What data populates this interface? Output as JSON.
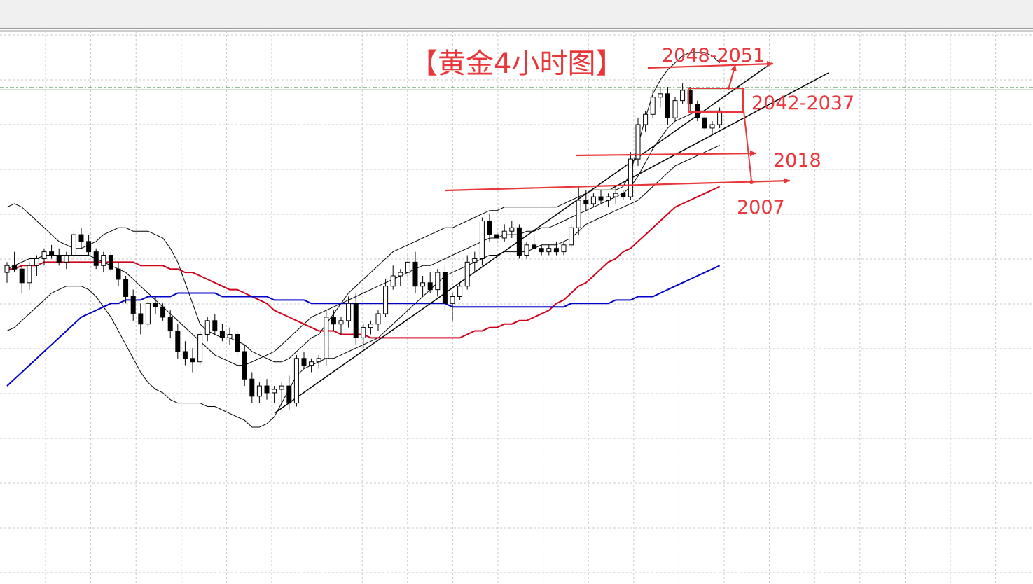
{
  "chart_data": {
    "type": "candlestick",
    "title": "【黄金4小时图】",
    "xlabel": "",
    "ylabel": "",
    "grid": true,
    "ylim": [
      1950,
      2060
    ],
    "annotations": {
      "resistance": "2048-2051",
      "support_zone": "2042-2037",
      "support_1": "2018",
      "support_2": "2007"
    },
    "levels": [
      2049,
      2018,
      2007
    ],
    "candles": [
      [
        1995,
        1998,
        1992,
        1997
      ],
      [
        1997,
        2001,
        1995,
        1996
      ],
      [
        1996,
        1997,
        1989,
        1992
      ],
      [
        1992,
        1998,
        1990,
        1997
      ],
      [
        1997,
        2000,
        1994,
        1999
      ],
      [
        1999,
        2002,
        1997,
        2001
      ],
      [
        2001,
        2003,
        1999,
        2000
      ],
      [
        2000,
        2002,
        1997,
        1998
      ],
      [
        1998,
        2001,
        1996,
        2000
      ],
      [
        2000,
        2007,
        1999,
        2006
      ],
      [
        2006,
        2008,
        2002,
        2004
      ],
      [
        2004,
        2006,
        2000,
        2001
      ],
      [
        2001,
        2002,
        1996,
        1997
      ],
      [
        1997,
        2001,
        1995,
        2000
      ],
      [
        2000,
        2001,
        1995,
        1996
      ],
      [
        1996,
        1998,
        1991,
        1993
      ],
      [
        1993,
        1994,
        1986,
        1988
      ],
      [
        1988,
        1990,
        1981,
        1983
      ],
      [
        1983,
        1986,
        1977,
        1980
      ],
      [
        1980,
        1987,
        1979,
        1986
      ],
      [
        1986,
        1988,
        1983,
        1985
      ],
      [
        1985,
        1986,
        1981,
        1982
      ],
      [
        1982,
        1984,
        1976,
        1978
      ],
      [
        1978,
        1980,
        1970,
        1972
      ],
      [
        1972,
        1975,
        1968,
        1970
      ],
      [
        1970,
        1973,
        1966,
        1969
      ],
      [
        1969,
        1978,
        1968,
        1977
      ],
      [
        1977,
        1982,
        1975,
        1981
      ],
      [
        1981,
        1983,
        1977,
        1978
      ],
      [
        1978,
        1980,
        1975,
        1976
      ],
      [
        1976,
        1979,
        1974,
        1977
      ],
      [
        1977,
        1978,
        1971,
        1972
      ],
      [
        1972,
        1974,
        1962,
        1964
      ],
      [
        1964,
        1966,
        1957,
        1959
      ],
      [
        1959,
        1963,
        1957,
        1962
      ],
      [
        1962,
        1964,
        1958,
        1960
      ],
      [
        1960,
        1962,
        1957,
        1961
      ],
      [
        1961,
        1963,
        1956,
        1962
      ],
      [
        1962,
        1965,
        1955,
        1957
      ],
      [
        1957,
        1971,
        1956,
        1970
      ],
      [
        1970,
        1972,
        1967,
        1968
      ],
      [
        1968,
        1970,
        1966,
        1969
      ],
      [
        1969,
        1971,
        1967,
        1970
      ],
      [
        1970,
        1984,
        1968,
        1982
      ],
      [
        1982,
        1984,
        1978,
        1980
      ],
      [
        1980,
        1982,
        1977,
        1981
      ],
      [
        1981,
        1988,
        1979,
        1986
      ],
      [
        1986,
        1989,
        1974,
        1976
      ],
      [
        1976,
        1980,
        1973,
        1979
      ],
      [
        1979,
        1981,
        1977,
        1980
      ],
      [
        1980,
        1984,
        1978,
        1983
      ],
      [
        1983,
        1993,
        1982,
        1991
      ],
      [
        1991,
        1997,
        1990,
        1994
      ],
      [
        1994,
        1996,
        1991,
        1995
      ],
      [
        1995,
        2000,
        1993,
        1998
      ],
      [
        1998,
        2001,
        1989,
        1991
      ],
      [
        1991,
        1994,
        1988,
        1992
      ],
      [
        1992,
        1995,
        1989,
        1990
      ],
      [
        1990,
        1996,
        1988,
        1995
      ],
      [
        1995,
        1997,
        1984,
        1986
      ],
      [
        1986,
        1989,
        1981,
        1988
      ],
      [
        1988,
        1992,
        1987,
        1991
      ],
      [
        1991,
        2000,
        1990,
        1998
      ],
      [
        1998,
        2001,
        1995,
        1999
      ],
      [
        1999,
        2011,
        1997,
        2010
      ],
      [
        2010,
        2012,
        2004,
        2006
      ],
      [
        2006,
        2008,
        2003,
        2005
      ],
      [
        2005,
        2009,
        2004,
        2007
      ],
      [
        2007,
        2010,
        2005,
        2008
      ],
      [
        2008,
        2009,
        1999,
        2000
      ],
      [
        2000,
        2004,
        1999,
        2003
      ],
      [
        2003,
        2006,
        2001,
        2002
      ],
      [
        2002,
        2003,
        2000,
        2001
      ],
      [
        2001,
        2003,
        2000,
        2002
      ],
      [
        2002,
        2004,
        2000,
        2001
      ],
      [
        2001,
        2004,
        2000,
        2003
      ],
      [
        2003,
        2009,
        2002,
        2008
      ],
      [
        2008,
        2020,
        2006,
        2016
      ],
      [
        2016,
        2019,
        2013,
        2015
      ],
      [
        2015,
        2018,
        2014,
        2017
      ],
      [
        2017,
        2019,
        2015,
        2016
      ],
      [
        2016,
        2018,
        2014,
        2017
      ],
      [
        2017,
        2020,
        2015,
        2018
      ],
      [
        2018,
        2019,
        2016,
        2017
      ],
      [
        2017,
        2030,
        2016,
        2028
      ],
      [
        2028,
        2040,
        2026,
        2038
      ],
      [
        2038,
        2042,
        2036,
        2041
      ],
      [
        2041,
        2048,
        2040,
        2046
      ],
      [
        2046,
        2049,
        2043,
        2047
      ],
      [
        2047,
        2049,
        2038,
        2040
      ],
      [
        2040,
        2046,
        2039,
        2045
      ],
      [
        2045,
        2050,
        2044,
        2048
      ],
      [
        2048,
        2049,
        2042,
        2044
      ],
      [
        2044,
        2045,
        2039,
        2040
      ],
      [
        2040,
        2041,
        2036,
        2037
      ],
      [
        2037,
        2039,
        2035,
        2038
      ],
      [
        2038,
        2043,
        2037,
        2042
      ]
    ],
    "series": [
      {
        "name": "",
        "kind": "ma",
        "color": "#d0021b",
        "values": [
          1996,
          1996,
          1997,
          1997,
          1997,
          1998,
          1998,
          1998,
          1998,
          1998,
          1998,
          1998,
          1998,
          1998,
          1998,
          1998,
          1998,
          1998,
          1997,
          1997,
          1997,
          1997,
          1996,
          1996,
          1995,
          1995,
          1994,
          1993,
          1992,
          1991,
          1990,
          1990,
          1989,
          1988,
          1987,
          1986,
          1984,
          1983,
          1982,
          1981,
          1980,
          1979,
          1978,
          1978,
          1978,
          1977,
          1977,
          1977,
          1977,
          1976,
          1976,
          1976,
          1976,
          1976,
          1976,
          1976,
          1976,
          1976,
          1976,
          1976,
          1976,
          1976,
          1977,
          1978,
          1978,
          1979,
          1979,
          1980,
          1980,
          1981,
          1981,
          1982,
          1983,
          1984,
          1986,
          1987,
          1989,
          1991,
          1992,
          1994,
          1996,
          1998,
          1999,
          2001,
          2002,
          2004,
          2006,
          2008,
          2010,
          2012,
          2014,
          2015,
          2016,
          2017,
          2018,
          2019,
          2020
        ]
      },
      {
        "name": "",
        "kind": "ma",
        "color": "#0000c8",
        "values": [
          1962,
          1964,
          1966,
          1968,
          1970,
          1972,
          1974,
          1976,
          1978,
          1980,
          1982,
          1983,
          1984,
          1985,
          1986,
          1986,
          1987,
          1987,
          1987,
          1988,
          1988,
          1988,
          1988,
          1989,
          1989,
          1989,
          1989,
          1989,
          1989,
          1988,
          1988,
          1988,
          1988,
          1988,
          1988,
          1988,
          1987,
          1987,
          1987,
          1987,
          1987,
          1986,
          1986,
          1986,
          1986,
          1986,
          1986,
          1986,
          1986,
          1986,
          1986,
          1986,
          1986,
          1986,
          1986,
          1986,
          1986,
          1986,
          1986,
          1986,
          1985,
          1985,
          1985,
          1985,
          1985,
          1985,
          1985,
          1985,
          1985,
          1985,
          1985,
          1985,
          1985,
          1985,
          1985,
          1985,
          1986,
          1986,
          1986,
          1986,
          1986,
          1986,
          1987,
          1987,
          1987,
          1988,
          1988,
          1988,
          1989,
          1990,
          1991,
          1992,
          1993,
          1994,
          1995,
          1996,
          1997
        ]
      },
      {
        "name": "",
        "kind": "bb-upper",
        "color": "#000000",
        "values": [
          2014,
          2015,
          2014,
          2012,
          2010,
          2008,
          2006,
          2004,
          2003,
          2002,
          2002,
          2003,
          2004,
          2006,
          2007,
          2008,
          2008,
          2007,
          2007,
          2007,
          2006,
          2005,
          2002,
          1998,
          1992,
          1986,
          1980,
          1978,
          1977,
          1976,
          1976,
          1975,
          1974,
          1972,
          1971,
          1970,
          1969,
          1969,
          1970,
          1972,
          1974,
          1976,
          1977,
          1980,
          1983,
          1986,
          1989,
          1991,
          1993,
          1995,
          1997,
          1999,
          2001,
          2002,
          2003,
          2004,
          2005,
          2006,
          2007,
          2008,
          2008,
          2009,
          2010,
          2011,
          2012,
          2013,
          2013,
          2014,
          2014,
          2014,
          2014,
          2014,
          2014,
          2014,
          2014,
          2015,
          2016,
          2017,
          2018,
          2019,
          2019,
          2019,
          2019,
          2020,
          2024,
          2032,
          2040,
          2047,
          2051,
          2054,
          2056,
          2058,
          2059,
          2059,
          2059,
          2058,
          2056
        ]
      },
      {
        "name": "",
        "kind": "bb-middle",
        "color": "#000000",
        "values": [
          1996,
          1997,
          1998,
          1999,
          1999,
          2000,
          2000,
          2000,
          2000,
          2000,
          2000,
          2000,
          1999,
          1998,
          1997,
          1996,
          1995,
          1993,
          1991,
          1989,
          1987,
          1985,
          1983,
          1981,
          1979,
          1977,
          1975,
          1973,
          1971,
          1970,
          1969,
          1968,
          1968,
          1969,
          1970,
          1971,
          1972,
          1974,
          1976,
          1978,
          1980,
          1982,
          1983,
          1984,
          1985,
          1986,
          1987,
          1988,
          1989,
          1990,
          1991,
          1992,
          1993,
          1994,
          1995,
          1996,
          1997,
          1997,
          1998,
          1999,
          2000,
          2001,
          2002,
          2003,
          2004,
          2005,
          2005,
          2006,
          2006,
          2006,
          2007,
          2007,
          2008,
          2008,
          2009,
          2010,
          2011,
          2012,
          2013,
          2014,
          2015,
          2016,
          2017,
          2018,
          2020,
          2023,
          2027,
          2031,
          2034,
          2037,
          2039,
          2040,
          2041,
          2042,
          2042,
          2042,
          2042
        ]
      },
      {
        "name": "",
        "kind": "bb-lower",
        "color": "#000000",
        "values": [
          1978,
          1979,
          1981,
          1983,
          1985,
          1987,
          1989,
          1990,
          1991,
          1991,
          1991,
          1990,
          1988,
          1985,
          1982,
          1978,
          1974,
          1970,
          1966,
          1963,
          1961,
          1960,
          1958,
          1957,
          1957,
          1957,
          1957,
          1956,
          1956,
          1955,
          1954,
          1953,
          1952,
          1950,
          1950,
          1951,
          1953,
          1957,
          1961,
          1965,
          1967,
          1968,
          1969,
          1970,
          1970,
          1971,
          1972,
          1973,
          1974,
          1975,
          1976,
          1978,
          1980,
          1982,
          1984,
          1986,
          1988,
          1990,
          1992,
          1994,
          1995,
          1996,
          1997,
          1998,
          1999,
          2000,
          2000,
          2001,
          2001,
          2001,
          2001,
          2002,
          2003,
          2003,
          2003,
          2004,
          2005,
          2007,
          2009,
          2010,
          2011,
          2012,
          2013,
          2014,
          2015,
          2016,
          2018,
          2020,
          2022,
          2024,
          2026,
          2027,
          2028,
          2029,
          2030,
          2031,
          2032
        ]
      }
    ]
  }
}
